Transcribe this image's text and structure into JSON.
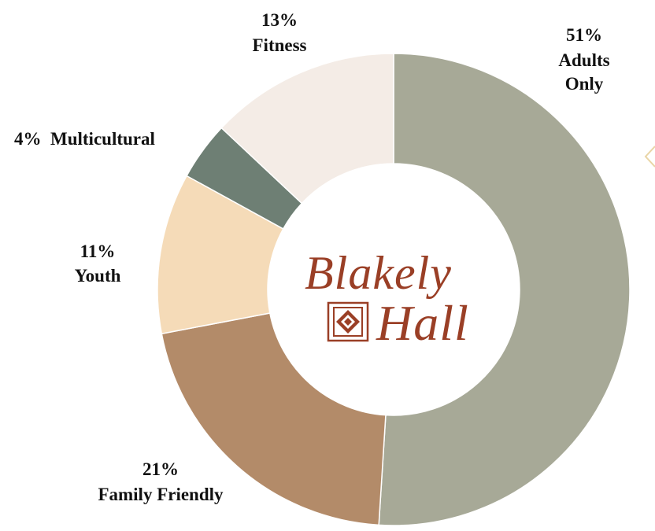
{
  "chart_data": {
    "type": "pie",
    "variant": "donut",
    "title": "",
    "slices": [
      {
        "label": "Adults Only",
        "percent_text": "51%",
        "value": 51,
        "color": "#a7a997"
      },
      {
        "label": "Family Friendly",
        "percent_text": "21%",
        "value": 21,
        "color": "#b38b69"
      },
      {
        "label": "Youth",
        "percent_text": "11%",
        "value": 11,
        "color": "#f5dbb8"
      },
      {
        "label": "Multicultural",
        "percent_text": "4%",
        "value": 4,
        "color": "#6e7f74"
      },
      {
        "label": "Fitness",
        "percent_text": "13%",
        "value": 13,
        "color": "#f4ece6"
      }
    ],
    "start": "12 o'clock",
    "direction": "clockwise",
    "center_logo": {
      "line1": "Blakely",
      "line2": "Hall",
      "color": "#9a3f26",
      "icon": "tile-emblem-icon"
    }
  }
}
